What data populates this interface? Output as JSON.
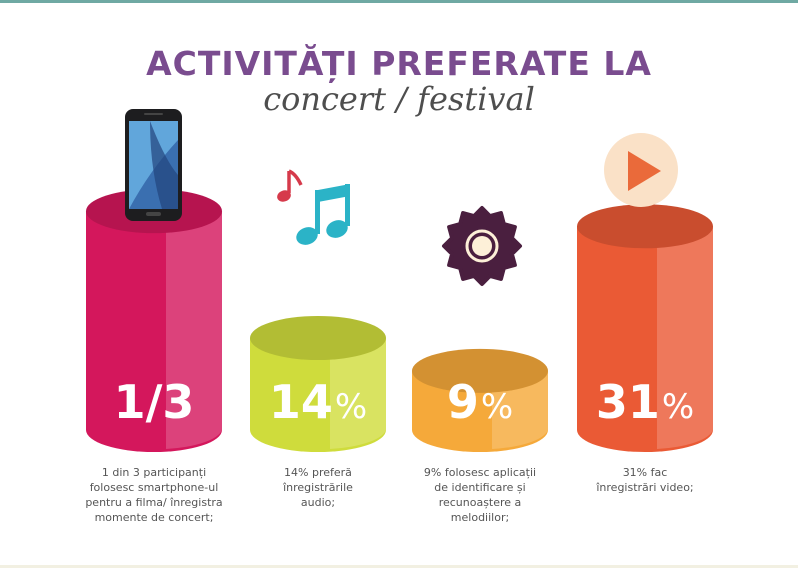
{
  "header": {
    "title": "ACTIVITĂȚI PREFERATE LA",
    "subtitle": "concert / festival"
  },
  "colors": {
    "title": "#7a4c8f",
    "bars": [
      "#d4175c",
      "#cfdc3c",
      "#f5a93a",
      "#ea5a35"
    ]
  },
  "icons": [
    "smartphone-icon",
    "music-notes-icon",
    "gear-record-icon",
    "play-icon"
  ],
  "chart_data": {
    "type": "bar",
    "categories": [
      "smartphone",
      "audio",
      "aplicatii",
      "video"
    ],
    "values": [
      33.3,
      14,
      9,
      31
    ],
    "value_labels": [
      {
        "main": "1/3",
        "suffix": ""
      },
      {
        "main": "14",
        "suffix": "%"
      },
      {
        "main": "9",
        "suffix": "%"
      },
      {
        "main": "31",
        "suffix": "%"
      }
    ],
    "captions": [
      [
        "1 din 3 participanți",
        "folosesc smartphone-ul",
        "pentru a filma/ înregistra",
        "momente de concert;"
      ],
      [
        "14% preferă",
        "înregistrările",
        "audio;"
      ],
      [
        "9% folosesc aplicații",
        "de identificare și",
        "recunoaștere a",
        "melodiilor;"
      ],
      [
        "31% fac",
        "înregistrări video;"
      ]
    ]
  }
}
